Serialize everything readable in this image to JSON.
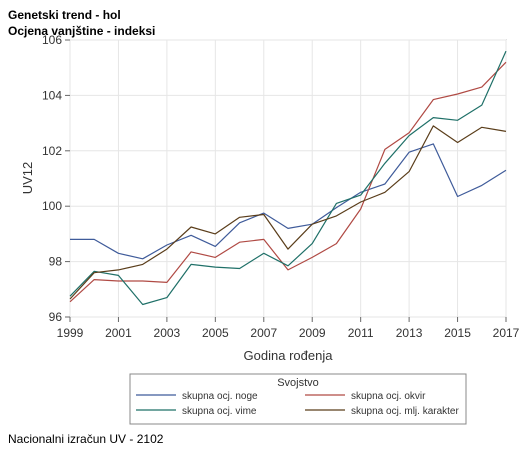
{
  "title": "Genetski trend - hol",
  "subtitle": "Ocjena vanjštine - indeksi",
  "footer": "Nacionalni izračun UV - 2102",
  "chart_data": {
    "type": "line",
    "xlabel": "Godina rođenja",
    "ylabel": "UV12",
    "xlim": [
      1999,
      2017
    ],
    "ylim": [
      96,
      106
    ],
    "x_ticks": [
      1999,
      2001,
      2003,
      2005,
      2007,
      2009,
      2011,
      2013,
      2015,
      2017
    ],
    "y_ticks": [
      96,
      98,
      100,
      102,
      104,
      106
    ],
    "grid": true,
    "legend": {
      "title": "Svojstvo",
      "placement": "bottom"
    },
    "x": [
      1999,
      2000,
      2001,
      2002,
      2003,
      2004,
      2005,
      2006,
      2007,
      2008,
      2009,
      2010,
      2011,
      2012,
      2013,
      2014,
      2015,
      2016,
      2017
    ],
    "series": [
      {
        "name": "skupna ocj. noge",
        "color": "#3f5b9a",
        "values": [
          98.8,
          98.8,
          98.3,
          98.1,
          98.6,
          98.95,
          98.55,
          99.4,
          99.75,
          99.2,
          99.35,
          99.95,
          100.5,
          100.8,
          101.95,
          102.25,
          100.35,
          100.75,
          101.3
        ]
      },
      {
        "name": "skupna ocj. okvir",
        "color": "#b04a44",
        "values": [
          96.55,
          97.35,
          97.3,
          97.3,
          97.25,
          98.35,
          98.15,
          98.7,
          98.8,
          97.7,
          98.15,
          98.65,
          99.9,
          102.05,
          102.65,
          103.85,
          104.05,
          104.3,
          105.2
        ]
      },
      {
        "name": "skupna ocj. vime",
        "color": "#1f7068",
        "values": [
          96.75,
          97.65,
          97.5,
          96.45,
          96.7,
          97.9,
          97.8,
          97.75,
          98.3,
          97.85,
          98.65,
          100.1,
          100.4,
          101.55,
          102.55,
          103.2,
          103.1,
          103.65,
          105.6
        ]
      },
      {
        "name": "skupna ocj. mlj. karakter",
        "color": "#5a3d1a",
        "values": [
          96.65,
          97.6,
          97.7,
          97.9,
          98.45,
          99.25,
          99.0,
          99.6,
          99.7,
          98.45,
          99.35,
          99.65,
          100.15,
          100.5,
          101.25,
          102.9,
          102.3,
          102.85,
          102.7
        ]
      }
    ]
  }
}
